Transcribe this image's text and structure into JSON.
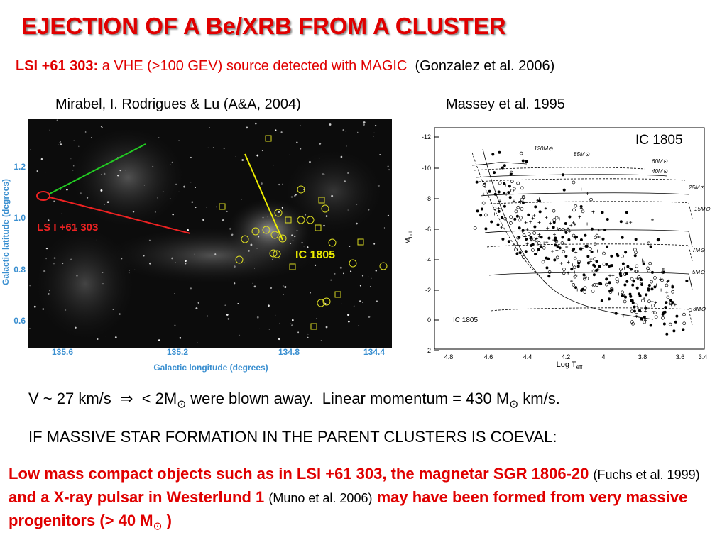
{
  "title": "EJECTION OF A Be/XRB FROM A CLUSTER",
  "subtitle": {
    "source": "LSI +61 303:",
    "text": "a VHE (>100 GEV) source detected with MAGIC",
    "ref": "(Gonzalez et al. 2006)"
  },
  "left_figure": {
    "caption": "Mirabel, I. Rodrigues & Lu  (A&A, 2004)",
    "x_label": "Galactic longitude (degrees)",
    "y_label": "Galactic latitude (degrees)",
    "x_ticks": [
      "135.6",
      "135.2",
      "134.8",
      "134.4"
    ],
    "y_ticks": [
      "1.2",
      "1.0",
      "0.8",
      "0.6"
    ],
    "source_label": "LS I +61 303",
    "cluster_label": "IC 1805"
  },
  "right_figure": {
    "caption": "Massey et al. 1995",
    "label": "IC 1805",
    "inner_label": "IC 1805",
    "x_label": "Log T",
    "x_label_sub": "eff",
    "y_label": "M",
    "y_label_sub": "bol",
    "x_ticks": [
      "4.8",
      "4.6",
      "4.4",
      "4.2",
      "4",
      "3.8",
      "3.6",
      "3.4"
    ],
    "y_ticks": [
      "-12",
      "-10",
      "-8",
      "-6",
      "-4",
      "-2",
      "0",
      "2"
    ],
    "tracks": [
      "120M⊙",
      "85M⊙",
      "60M⊙",
      "40M⊙",
      "25M⊙",
      "15M⊙",
      "7M⊙",
      "5M⊙",
      "3M⊙"
    ]
  },
  "velocity_line": {
    "velocity": "V ~ 27 km/s",
    "arrow": "⇒",
    "mass": "< 2M",
    "sun1": "⊙",
    "blown": "were blown away.",
    "momentum": "Linear momentum = 430 M",
    "sun2": "⊙",
    "unit": "km/s."
  },
  "condition": "IF MASSIVE STAR FORMATION IN THE PARENT CLUSTERS IS COEVAL:",
  "conclusion": {
    "part1": "Low mass compact objects such as in LSI +61 303, the magnetar SGR 1806-20",
    "ref1": "(Fuchs et al. 1999)",
    "part2": "and a X-ray pulsar in Westerlund 1",
    "ref2": "(Muno et al. 2006)",
    "part3": "may have been formed from very massive progenitors (> 40 M",
    "sun": "⊙",
    "part4": ")"
  }
}
